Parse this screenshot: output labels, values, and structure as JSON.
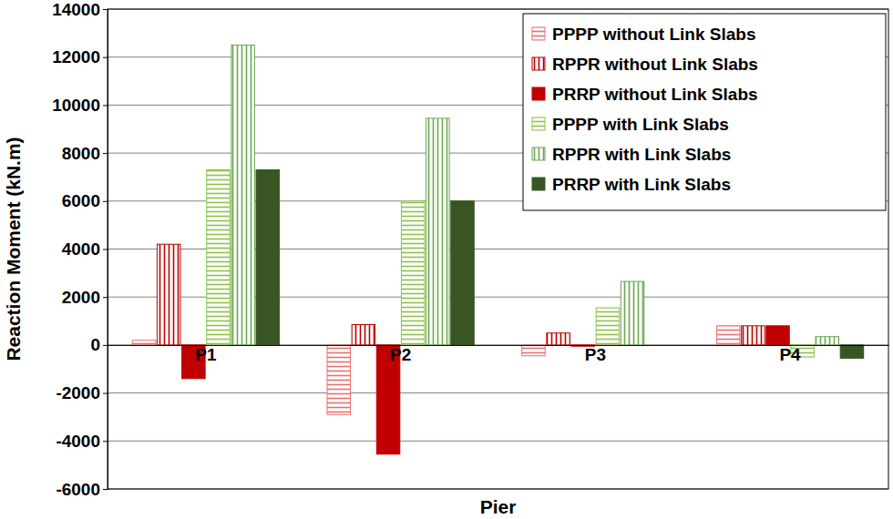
{
  "chart_data": {
    "type": "bar",
    "x_label": "Pier",
    "y_label": "Reaction Moment (kN.m)",
    "categories": [
      "P1",
      "P2",
      "P3",
      "P4"
    ],
    "ylim": [
      -6000,
      14000
    ],
    "yticks": [
      -6000,
      -4000,
      -2000,
      0,
      2000,
      4000,
      6000,
      8000,
      10000,
      12000,
      14000
    ],
    "grid": true,
    "legend": "top-right",
    "series": [
      {
        "name": "PPPP without Link Slabs",
        "color": "#e87070",
        "values": [
          200,
          -2900,
          -450,
          800
        ]
      },
      {
        "name": "RPPR without Link Slabs",
        "color": "#c00000",
        "values": [
          4200,
          850,
          500,
          800
        ]
      },
      {
        "name": "PRRP without Link Slabs",
        "color": "#c00000",
        "values": [
          -1400,
          -4550,
          -50,
          800
        ]
      },
      {
        "name": "PPPP with Link Slabs",
        "color": "#8fc24a",
        "values": [
          7300,
          6000,
          1550,
          -500
        ]
      },
      {
        "name": "RPPR with Link Slabs",
        "color": "#6aa84f",
        "values": [
          12500,
          9450,
          2650,
          350
        ]
      },
      {
        "name": "PRRP with Link Slabs",
        "color": "#375623",
        "values": [
          7300,
          6000,
          0,
          -550
        ]
      }
    ]
  }
}
